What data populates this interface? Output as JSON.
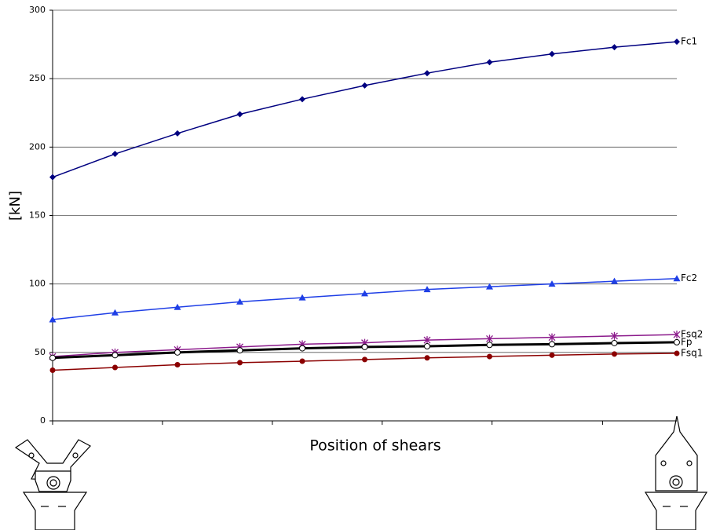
{
  "chart_data": {
    "type": "line",
    "y_label": "[kN]",
    "x_label": "Position of shears",
    "x": [
      0,
      1,
      2,
      3,
      4,
      5,
      6,
      7,
      8,
      9,
      10
    ],
    "xlim": [
      0,
      10
    ],
    "xticks": [
      0,
      1.76,
      3.52,
      5.28,
      7.04,
      8.81
    ],
    "ylim": [
      0,
      300
    ],
    "yticks": [
      0,
      50,
      100,
      150,
      200,
      250,
      300
    ],
    "grid": true,
    "series": [
      {
        "name": "Fc1",
        "color": "#000080",
        "marker": "diamond",
        "line_width": 1.5,
        "values": [
          178,
          195,
          210,
          224,
          235,
          245,
          254,
          262,
          268,
          273,
          277
        ]
      },
      {
        "name": "Fc2",
        "color": "#1f3fe6",
        "marker": "triangle",
        "line_width": 1.5,
        "values": [
          74,
          79,
          83,
          87,
          90,
          93,
          96,
          98,
          100,
          102,
          104
        ]
      },
      {
        "name": "Fsq2",
        "color": "#8b1a8b",
        "marker": "star",
        "line_width": 1.5,
        "values": [
          47,
          50,
          52,
          54,
          56,
          57,
          59,
          60,
          61,
          62,
          63
        ]
      },
      {
        "name": "Fp",
        "color": "#000000",
        "marker": "open-circle",
        "line_width": 3,
        "values": [
          46,
          48,
          50,
          51.5,
          53,
          54,
          54.5,
          55.5,
          56,
          56.8,
          57.4
        ]
      },
      {
        "name": "Fsq1",
        "color": "#8b0000",
        "marker": "circle",
        "line_width": 1.5,
        "values": [
          37,
          39,
          41,
          42.5,
          43.6,
          44.8,
          46,
          47,
          48,
          48.8,
          49.3
        ]
      }
    ]
  }
}
